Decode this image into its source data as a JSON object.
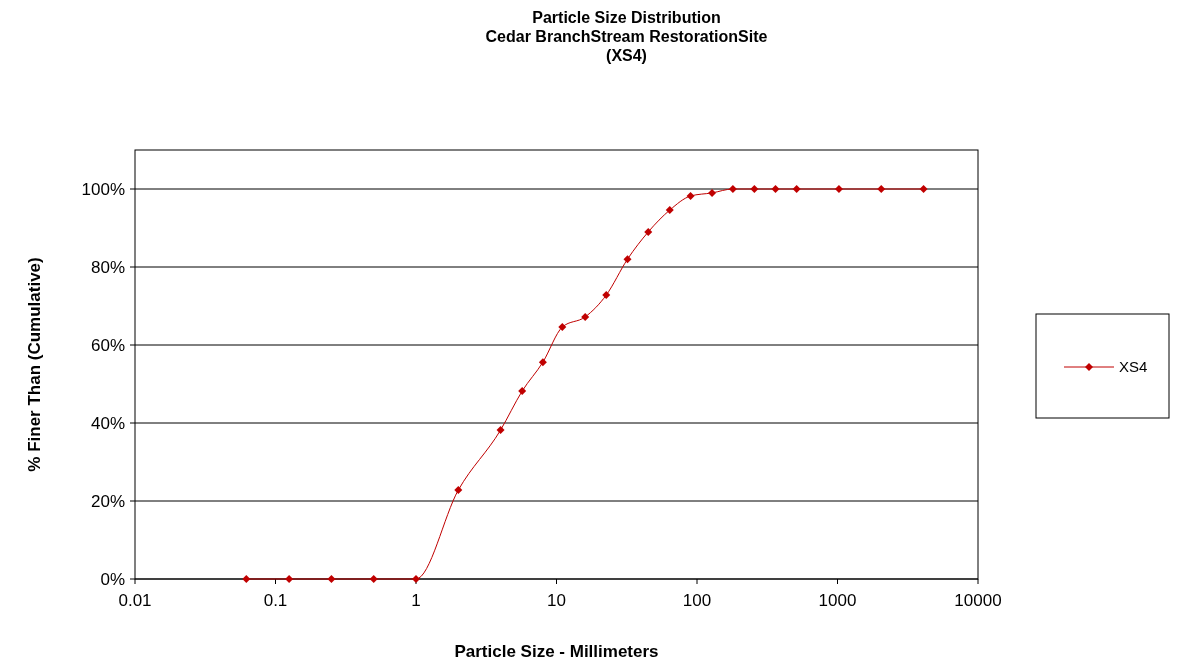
{
  "chart_data": {
    "type": "line",
    "title": "Particle Size Distribution\nCedar BranchStream RestorationSite\n(XS4)",
    "xlabel": "Particle Size - Millimeters",
    "ylabel": "% Finer Than (Cumulative)",
    "log": "x",
    "xlim": [
      0.01,
      10000
    ],
    "xticks": [
      0.01,
      0.1,
      1,
      10,
      100,
      1000,
      10000
    ],
    "ylim": [
      0,
      110
    ],
    "yticks": [
      {
        "value": 0,
        "label": "0%"
      },
      {
        "value": 20,
        "label": "20%"
      },
      {
        "value": 40,
        "label": "40%"
      },
      {
        "value": 60,
        "label": "60%"
      },
      {
        "value": 80,
        "label": "80%"
      },
      {
        "value": 100,
        "label": "100%"
      }
    ],
    "grid": "y",
    "legend": "right",
    "marker": "diamond",
    "line_style": "solid",
    "series": [
      {
        "name": "XS4",
        "color": "#c00000",
        "x": [
          0.062,
          0.125,
          0.25,
          0.5,
          1,
          2,
          4,
          5.7,
          8,
          11,
          16,
          22.6,
          32,
          45,
          64,
          90,
          128,
          180,
          256,
          362,
          512,
          1024,
          2048,
          4096
        ],
        "values": [
          0,
          0,
          0,
          0,
          0,
          22.8,
          38.2,
          48.2,
          55.6,
          64.6,
          67.2,
          72.8,
          82,
          89,
          94.6,
          98.2,
          99,
          100,
          100,
          100,
          100,
          100,
          100,
          100
        ]
      }
    ]
  }
}
